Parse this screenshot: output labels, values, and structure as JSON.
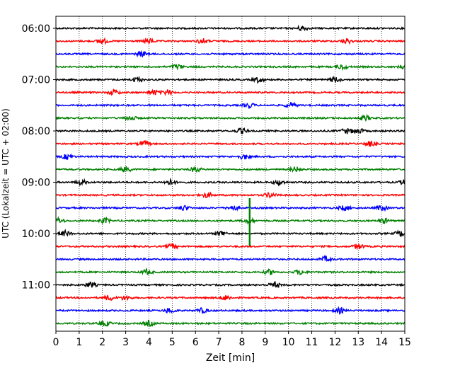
{
  "chart_data": {
    "type": "line",
    "title": "",
    "xlabel": "Zeit  [min]",
    "ylabel": "UTC (Lokalzeit = UTC + 02:00)",
    "xlim": [
      0,
      15
    ],
    "x_ticks": [
      "0",
      "1",
      "2",
      "3",
      "4",
      "5",
      "6",
      "7",
      "8",
      "9",
      "10",
      "11",
      "12",
      "13",
      "14",
      "15"
    ],
    "y_ticks": [
      {
        "label": "06:00",
        "trace_index": 0
      },
      {
        "label": "07:00",
        "trace_index": 4
      },
      {
        "label": "08:00",
        "trace_index": 8
      },
      {
        "label": "09:00",
        "trace_index": 12
      },
      {
        "label": "10:00",
        "trace_index": 16
      },
      {
        "label": "11:00",
        "trace_index": 20
      }
    ],
    "grid": "vertical dotted",
    "trace_interval_minutes": 15,
    "trace_colors": [
      "#000000",
      "#ff0000",
      "#0000ff",
      "#008000"
    ],
    "traces": [
      {
        "start": "06:00",
        "events_min": [
          10.6
        ]
      },
      {
        "start": "06:15",
        "events_min": [
          2.0,
          4.0,
          6.3,
          12.5
        ]
      },
      {
        "start": "06:30",
        "events_min": [
          3.7
        ]
      },
      {
        "start": "06:45",
        "events_min": [
          5.2,
          12.3,
          15.0
        ]
      },
      {
        "start": "07:00",
        "events_min": [
          3.5,
          8.7,
          12.0
        ]
      },
      {
        "start": "07:15",
        "events_min": [
          2.5,
          4.2,
          4.8
        ]
      },
      {
        "start": "07:30",
        "events_min": [
          8.3,
          10.1
        ]
      },
      {
        "start": "07:45",
        "events_min": [
          3.2,
          13.3
        ]
      },
      {
        "start": "08:00",
        "events_min": [
          8.0,
          12.5,
          13.0
        ]
      },
      {
        "start": "08:15",
        "events_min": [
          3.8,
          13.5
        ]
      },
      {
        "start": "08:30",
        "events_min": [
          0.5,
          8.1
        ]
      },
      {
        "start": "08:45",
        "events_min": [
          3.0,
          6.0,
          10.3
        ]
      },
      {
        "start": "09:00",
        "events_min": [
          1.1,
          4.9,
          9.6,
          15.0
        ]
      },
      {
        "start": "09:15",
        "events_min": [
          6.5,
          9.2
        ]
      },
      {
        "start": "09:30",
        "events_min": [
          5.5,
          7.6,
          12.4,
          14.0
        ]
      },
      {
        "start": "09:45",
        "events_min": [
          0.1,
          2.1,
          8.3,
          14.1
        ]
      },
      {
        "start": "10:00",
        "events_min": [
          0.4,
          7.1,
          14.8
        ]
      },
      {
        "start": "10:15",
        "events_min": [
          5.0,
          13.0
        ]
      },
      {
        "start": "10:30",
        "events_min": [
          11.6
        ]
      },
      {
        "start": "10:45",
        "events_min": [
          3.9,
          9.2,
          10.5
        ]
      },
      {
        "start": "11:00",
        "events_min": [
          1.5,
          9.4
        ]
      },
      {
        "start": "11:15",
        "events_min": [
          2.3,
          3.0,
          7.3
        ]
      },
      {
        "start": "11:30",
        "events_min": [
          4.9,
          6.3,
          12.2
        ]
      },
      {
        "start": "11:45",
        "events_min": [
          2.1,
          4.0
        ]
      }
    ],
    "spike": {
      "trace_index": 15,
      "x_min": 8.33,
      "direction": "both"
    }
  }
}
